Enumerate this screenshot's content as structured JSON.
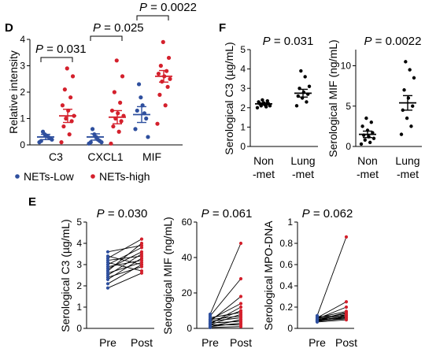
{
  "colors": {
    "low": "#2e4f9e",
    "high": "#d4202c",
    "black": "#000000"
  },
  "panel_labels": {
    "d": "D",
    "e": "E",
    "f": "F"
  },
  "chart_data": [
    {
      "id": "D",
      "type": "scatter",
      "ylabel": "Relative intensity",
      "ylim": [
        0,
        4
      ],
      "yticks": [
        0,
        1,
        2,
        3,
        4
      ],
      "categories": [
        "C3",
        "CXCL1",
        "MIF"
      ],
      "p_values": [
        "P = 0.031",
        "P = 0.025",
        "P = 0.0022"
      ],
      "series": [
        {
          "name": "NETs-Low",
          "color": "#2e4f9e",
          "values": [
            [
              0.1,
              0.2,
              0.25,
              0.3,
              0.35,
              0.4,
              0.5,
              0.15
            ],
            [
              0.05,
              0.1,
              0.15,
              0.2,
              0.3,
              0.4,
              0.6,
              0.1
            ],
            [
              0.6,
              0.3,
              1.0,
              1.2,
              1.5,
              1.8,
              2.3,
              1.3
            ]
          ],
          "mean": [
            0.3,
            0.3,
            1.15
          ],
          "sem": [
            0.1,
            0.12,
            0.3
          ]
        },
        {
          "name": "NETs-high",
          "color": "#d4202c",
          "values": [
            [
              0.1,
              0.4,
              0.7,
              0.9,
              1.0,
              1.1,
              1.3,
              1.5,
              1.8,
              2.1,
              2.6,
              2.9
            ],
            [
              0.05,
              0.5,
              0.7,
              0.9,
              1.0,
              1.1,
              1.2,
              1.3,
              1.6,
              2.0,
              2.6,
              3.2
            ],
            [
              0.8,
              1.5,
              1.9,
              2.2,
              2.4,
              2.5,
              2.6,
              2.7,
              2.8,
              3.0,
              3.3,
              3.9
            ]
          ],
          "mean": [
            1.1,
            1.05,
            2.6
          ],
          "sem": [
            0.25,
            0.25,
            0.22
          ]
        }
      ],
      "legend": [
        "NETs-Low",
        "NETs-high"
      ]
    },
    {
      "id": "F1",
      "type": "scatter",
      "ylabel": "Serological C3 (µg/mL)",
      "ylim": [
        0,
        5
      ],
      "yticks": [
        0,
        1,
        2,
        3,
        4,
        5
      ],
      "categories": [
        [
          "Non",
          "-met"
        ],
        [
          "Lung",
          "-met"
        ]
      ],
      "p_value": "P = 0.031",
      "values": [
        [
          2.0,
          2.05,
          2.1,
          2.1,
          2.15,
          2.2,
          2.2,
          2.25,
          2.3,
          2.35,
          2.4
        ],
        [
          2.1,
          2.3,
          2.5,
          2.6,
          2.7,
          2.8,
          3.0,
          3.1,
          3.6,
          3.9
        ]
      ],
      "mean": [
        2.2,
        2.75
      ],
      "sem": [
        0.05,
        0.2
      ]
    },
    {
      "id": "F2",
      "type": "scatter",
      "ylabel": "Serological MIF (ng/mL)",
      "ylim": [
        0,
        12
      ],
      "yticks": [
        0,
        5,
        10
      ],
      "categories": [
        [
          "Non",
          "-met"
        ],
        [
          "Lung",
          "-met"
        ]
      ],
      "p_value": "P = 0.0022",
      "values": [
        [
          0.3,
          0.5,
          0.8,
          1.0,
          1.2,
          1.4,
          1.7,
          2.0,
          2.5,
          3.0,
          3.5
        ],
        [
          1.5,
          2.5,
          3.5,
          4.5,
          5.0,
          6.0,
          7.0,
          8.5,
          9.5,
          10.5
        ]
      ],
      "mean": [
        1.5,
        5.4
      ],
      "sem": [
        0.4,
        0.9
      ]
    },
    {
      "id": "E1",
      "type": "line",
      "ylabel": "Serological C3 (µg/mL)",
      "ylim": [
        0,
        5
      ],
      "yticks": [
        0,
        1,
        2,
        3,
        4,
        5
      ],
      "categories": [
        "Pre",
        "Post"
      ],
      "p_value": "P = 0.030",
      "pairs": [
        [
          1.9,
          2.6
        ],
        [
          2.1,
          3.0
        ],
        [
          2.3,
          3.3
        ],
        [
          2.4,
          2.9
        ],
        [
          2.5,
          3.5
        ],
        [
          2.6,
          3.1
        ],
        [
          2.7,
          4.0
        ],
        [
          2.8,
          3.6
        ],
        [
          2.9,
          3.2
        ],
        [
          3.0,
          3.8
        ],
        [
          3.1,
          2.7
        ],
        [
          3.2,
          3.4
        ],
        [
          3.3,
          4.2
        ],
        [
          3.4,
          3.0
        ],
        [
          3.6,
          3.9
        ]
      ]
    },
    {
      "id": "E2",
      "type": "line",
      "ylabel": "Serological MIF (ng/mL)",
      "ylim": [
        0,
        60
      ],
      "yticks": [
        0,
        20,
        40,
        60
      ],
      "categories": [
        "Pre",
        "Post"
      ],
      "p_value": "P = 0.061",
      "pairs": [
        [
          0.5,
          1
        ],
        [
          1,
          3
        ],
        [
          1,
          5
        ],
        [
          2,
          2
        ],
        [
          2,
          8
        ],
        [
          2.5,
          12
        ],
        [
          3,
          4
        ],
        [
          3,
          10
        ],
        [
          4,
          6
        ],
        [
          4,
          18
        ],
        [
          5,
          7
        ],
        [
          5,
          14
        ],
        [
          6,
          9
        ],
        [
          7,
          28
        ],
        [
          8,
          48
        ]
      ]
    },
    {
      "id": "E3",
      "type": "line",
      "ylabel": "Serological MPO-DNA",
      "ylim": [
        0,
        1.0
      ],
      "yticks": [
        0,
        0.2,
        0.4,
        0.6,
        0.8,
        1.0
      ],
      "categories": [
        "Pre",
        "Post"
      ],
      "p_value": "P = 0.062",
      "pairs": [
        [
          0.06,
          0.08
        ],
        [
          0.065,
          0.1
        ],
        [
          0.07,
          0.09
        ],
        [
          0.07,
          0.12
        ],
        [
          0.075,
          0.11
        ],
        [
          0.08,
          0.13
        ],
        [
          0.08,
          0.15
        ],
        [
          0.085,
          0.1
        ],
        [
          0.09,
          0.14
        ],
        [
          0.09,
          0.2
        ],
        [
          0.1,
          0.16
        ],
        [
          0.1,
          0.25
        ],
        [
          0.11,
          0.12
        ],
        [
          0.12,
          0.86
        ]
      ]
    }
  ]
}
